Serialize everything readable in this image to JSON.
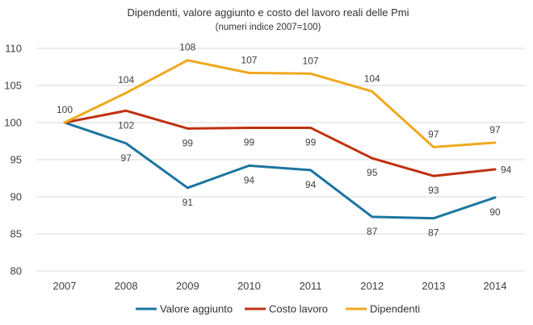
{
  "chart_data": {
    "type": "line",
    "title": "Dipendenti, valore aggiunto e costo del lavoro reali delle Pmi",
    "subtitle": "(numeri indice 2007=100)",
    "categories": [
      "2007",
      "2008",
      "2009",
      "2010",
      "2011",
      "2012",
      "2013",
      "2014"
    ],
    "ylim": [
      80,
      110
    ],
    "yticks": [
      80,
      85,
      90,
      95,
      100,
      105,
      110
    ],
    "grid": true,
    "legend_position": "bottom",
    "series": [
      {
        "name": "Valore aggiunto",
        "color": "#1B75A0",
        "values": [
          100,
          97.2,
          91.2,
          94.2,
          93.6,
          87.3,
          87.1,
          89.9
        ],
        "labels": [
          "",
          "97",
          "91",
          "94",
          "94",
          "87",
          "87",
          "90"
        ],
        "label_side": [
          "",
          "below",
          "below",
          "below",
          "below",
          "below",
          "below",
          "below"
        ]
      },
      {
        "name": "Costo lavoro",
        "color": "#C0300F",
        "values": [
          100,
          101.6,
          99.2,
          99.3,
          99.3,
          95.2,
          92.8,
          93.7
        ],
        "labels": [
          "",
          "102",
          "99",
          "99",
          "99",
          "95",
          "93",
          "94"
        ],
        "label_side": [
          "",
          "below",
          "below",
          "below",
          "below",
          "below",
          "below",
          "right"
        ]
      },
      {
        "name": "Dipendenti",
        "color": "#F0A81E",
        "values": [
          100,
          104.0,
          108.4,
          106.7,
          106.6,
          104.2,
          96.7,
          97.3
        ],
        "labels": [
          "100",
          "104",
          "108",
          "107",
          "107",
          "104",
          "97",
          "97"
        ],
        "label_side": [
          "above",
          "above",
          "above",
          "above",
          "above",
          "above",
          "above",
          "above"
        ]
      }
    ]
  }
}
